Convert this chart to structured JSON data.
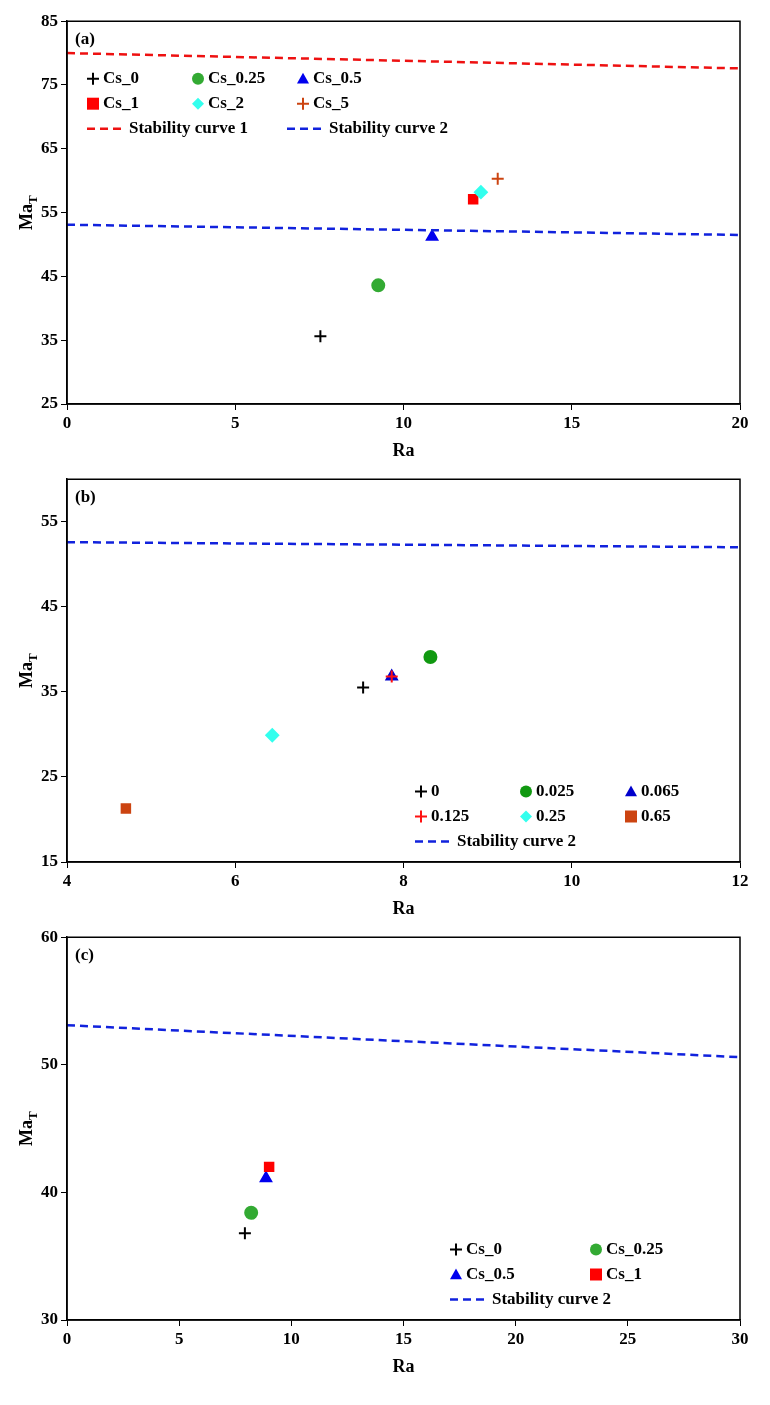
{
  "chart_data": [
    {
      "type": "scatter",
      "title": "(a)",
      "xlabel": "Ra",
      "ylabel": "Ma$_{T}$",
      "xlim": [
        0,
        20
      ],
      "xticks": [
        0,
        5,
        10,
        15,
        20
      ],
      "ylim": [
        25,
        85
      ],
      "yticks": [
        25,
        35,
        45,
        55,
        65,
        75,
        85
      ],
      "grid": false,
      "legend": "top left",
      "series": [
        {
          "name": "Cs_0",
          "color": "#000000",
          "marker": "cross",
          "x": [
            7.53
          ],
          "values": [
            35.6
          ]
        },
        {
          "name": "Cs_0.25",
          "color": "#33aa33",
          "marker": "circle",
          "x": [
            9.25
          ],
          "values": [
            43.6
          ]
        },
        {
          "name": "Cs_0.5",
          "color": "#0000ee",
          "marker": "triangle",
          "x": [
            10.85
          ],
          "values": [
            51.2
          ]
        },
        {
          "name": "Cs_1",
          "color": "#ff0000",
          "marker": "square",
          "x": [
            12.07
          ],
          "values": [
            57.1
          ]
        },
        {
          "name": "Cs_2",
          "color": "#33ffee",
          "marker": "diamond",
          "x": [
            12.3
          ],
          "values": [
            58.2
          ]
        },
        {
          "name": "Cs_5",
          "color": "#cc4411",
          "marker": "cross",
          "x": [
            12.8
          ],
          "values": [
            60.3
          ]
        },
        {
          "name": "Stability curve 1",
          "type": "line",
          "color": "#ee1111",
          "marker": "none",
          "line_style": "dashed",
          "x": [
            0,
            20
          ],
          "values": [
            80,
            77.6
          ]
        },
        {
          "name": "Stability curve 2",
          "type": "line",
          "color": "#1122dd",
          "marker": "none",
          "line_style": "dashed",
          "x": [
            0,
            20
          ],
          "values": [
            53.1,
            51.5
          ]
        }
      ]
    },
    {
      "type": "scatter",
      "title": "(b)",
      "xlabel": "Ra",
      "ylabel": "Ma$_{T}$",
      "xlim": [
        4,
        12
      ],
      "xticks": [
        4,
        6,
        8,
        10,
        12
      ],
      "ylim": [
        15,
        60
      ],
      "yticks": [
        15,
        25,
        35,
        45,
        55
      ],
      "grid": false,
      "legend": "bottom right",
      "series": [
        {
          "name": "0",
          "color": "#000000",
          "marker": "cross",
          "x": [
            7.52
          ],
          "values": [
            35.5
          ]
        },
        {
          "name": "0.025",
          "color": "#119911",
          "marker": "circle",
          "x": [
            8.32
          ],
          "values": [
            39.1
          ]
        },
        {
          "name": "0.065",
          "color": "#0000cc",
          "marker": "triangle",
          "x": [
            7.86
          ],
          "values": [
            36.8
          ]
        },
        {
          "name": "0.125",
          "color": "#ff1111",
          "marker": "cross",
          "x": [
            7.86
          ],
          "values": [
            36.8
          ]
        },
        {
          "name": "0.25",
          "color": "#33ffee",
          "marker": "diamond",
          "x": [
            6.44
          ],
          "values": [
            29.9
          ]
        },
        {
          "name": "0.65",
          "color": "#cc4411",
          "marker": "square",
          "x": [
            4.7
          ],
          "values": [
            21.3
          ]
        },
        {
          "name": "Stability curve 2",
          "type": "line",
          "color": "#1122dd",
          "marker": "none",
          "line_style": "dashed",
          "x": [
            4,
            12
          ],
          "values": [
            52.6,
            52.0
          ]
        }
      ]
    },
    {
      "type": "scatter",
      "title": "(c)",
      "xlabel": "Ra",
      "ylabel": "Ma$_{T}$",
      "xlim": [
        0,
        30
      ],
      "xticks": [
        0,
        5,
        10,
        15,
        20,
        25,
        30
      ],
      "ylim": [
        30,
        60
      ],
      "yticks": [
        30,
        40,
        50,
        60
      ],
      "grid": false,
      "legend": "bottom right",
      "series": [
        {
          "name": "Cs_0",
          "color": "#000000",
          "marker": "cross",
          "x": [
            7.93
          ],
          "values": [
            36.8
          ]
        },
        {
          "name": "Cs_0.25",
          "color": "#33aa33",
          "marker": "circle",
          "x": [
            8.21
          ],
          "values": [
            38.4
          ]
        },
        {
          "name": "Cs_0.5",
          "color": "#0000ee",
          "marker": "triangle",
          "x": [
            8.87
          ],
          "values": [
            41.1
          ]
        },
        {
          "name": "Cs_1",
          "color": "#ff0000",
          "marker": "square",
          "x": [
            9.01
          ],
          "values": [
            42.0
          ]
        },
        {
          "name": "Stability curve 2",
          "type": "line",
          "color": "#1122dd",
          "marker": "none",
          "line_style": "dashed",
          "x": [
            0,
            30
          ],
          "values": [
            53.1,
            50.6
          ]
        }
      ]
    }
  ]
}
